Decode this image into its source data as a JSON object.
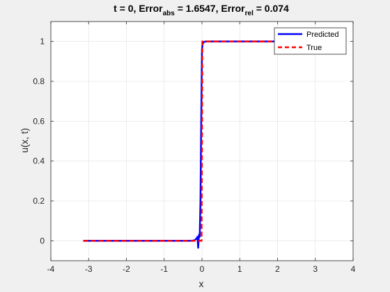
{
  "chart_data": {
    "type": "line",
    "title": {
      "prefix": "t = 0, Error",
      "abs_sub": "abs",
      "mid": " = 1.6547, Error",
      "rel_sub": "rel",
      "suffix": " = 0.074"
    },
    "xlabel": "x",
    "ylabel": "u(x, t)",
    "xlim": [
      -4,
      4
    ],
    "ylim": [
      -0.1,
      1.1
    ],
    "xticks": [
      -4,
      -3,
      -2,
      -1,
      0,
      1,
      2,
      3,
      4
    ],
    "yticks": [
      0,
      0.2,
      0.4,
      0.6,
      0.8,
      1
    ],
    "grid": true,
    "legend_position": "top-right",
    "series": [
      {
        "name": "Predicted",
        "color": "#0000ff",
        "style": "solid",
        "x": [
          -3.1416,
          -0.3,
          -0.2,
          -0.15,
          -0.12,
          -0.1,
          -0.08,
          -0.06,
          -0.04,
          -0.02,
          0,
          0.02,
          0.04,
          0.06,
          0.1,
          0.2,
          0.5,
          1.0,
          2.0,
          3.1416
        ],
        "y": [
          0,
          0,
          0.002,
          0.01,
          0.02,
          -0.035,
          0.03,
          0.02,
          0.2,
          0.6,
          0.96,
          0.99,
          0.995,
          0.998,
          1.0,
          1.0,
          1.0,
          1.0,
          1.0,
          1.0
        ]
      },
      {
        "name": "True",
        "color": "#ff0000",
        "style": "dashed",
        "x": [
          -3.1416,
          -0.01,
          0.01,
          3.1416
        ],
        "y": [
          0,
          0,
          1,
          1
        ]
      }
    ]
  }
}
